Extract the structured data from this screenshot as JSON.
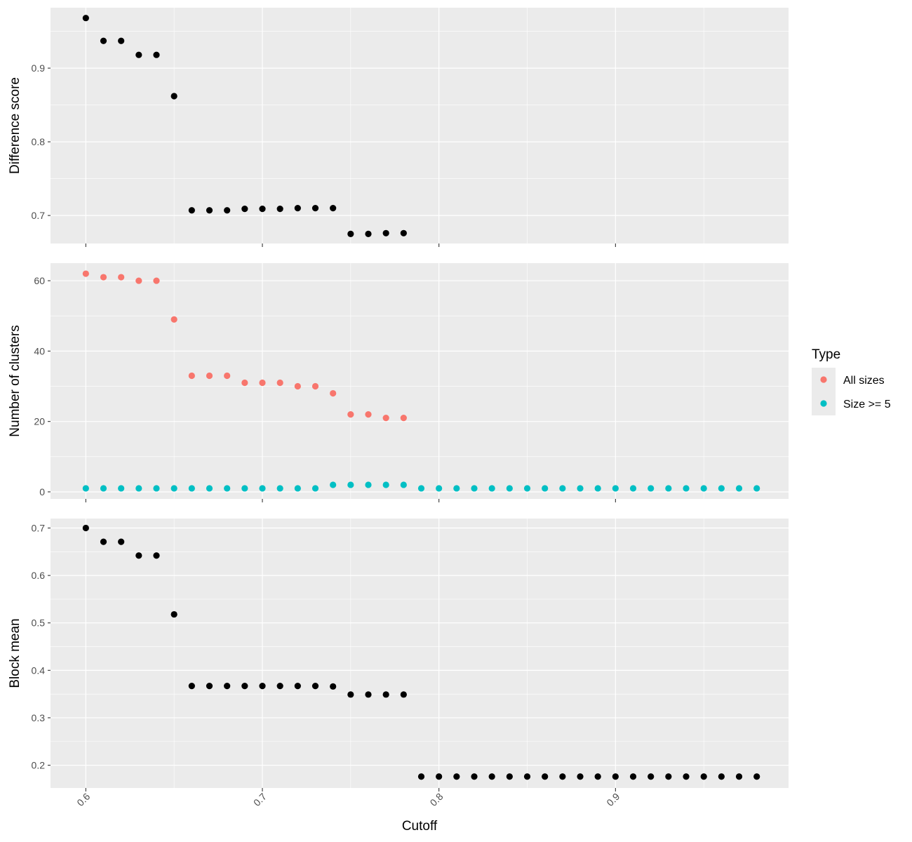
{
  "chart_data": {
    "type": "scatter",
    "shared_x": {
      "label": "Cutoff",
      "lim": [
        0.58,
        0.998
      ],
      "ticks": [
        0.6,
        0.7,
        0.8,
        0.9
      ],
      "tick_labels": [
        "0.6",
        "0.7",
        "0.8",
        "0.9"
      ]
    },
    "theme": {
      "panel_bg": "#ebebeb",
      "grid_color": "#ffffff",
      "point_color": "#000000"
    },
    "panels": [
      {
        "ylabel": "Difference score",
        "ylim": [
          0.662,
          0.982
        ],
        "yticks": [
          0.7,
          0.8,
          0.9
        ],
        "ytick_labels": [
          "0.7",
          "0.8",
          "0.9"
        ],
        "series": [
          {
            "x": [
              0.6,
              0.61,
              0.62,
              0.63,
              0.64,
              0.65,
              0.66,
              0.67,
              0.68,
              0.69,
              0.7,
              0.71,
              0.72,
              0.73,
              0.74,
              0.75,
              0.76,
              0.77,
              0.78
            ],
            "y": [
              0.968,
              0.937,
              0.937,
              0.918,
              0.918,
              0.862,
              0.707,
              0.707,
              0.707,
              0.709,
              0.709,
              0.709,
              0.71,
              0.71,
              0.71,
              0.675,
              0.675,
              0.676,
              0.676
            ]
          }
        ]
      },
      {
        "ylabel": "Number of clusters",
        "ylim": [
          -2,
          65
        ],
        "yticks": [
          0,
          20,
          40,
          60
        ],
        "ytick_labels": [
          "0",
          "20",
          "40",
          "60"
        ],
        "series": [
          {
            "name": "All sizes",
            "color": "#f8766d",
            "x": [
              0.6,
              0.61,
              0.62,
              0.63,
              0.64,
              0.65,
              0.66,
              0.67,
              0.68,
              0.69,
              0.7,
              0.71,
              0.72,
              0.73,
              0.74,
              0.75,
              0.76,
              0.77,
              0.78
            ],
            "y": [
              62,
              61,
              61,
              60,
              60,
              49,
              33,
              33,
              33,
              31,
              31,
              31,
              30,
              30,
              28,
              22,
              22,
              21,
              21
            ]
          },
          {
            "name": "Size >= 5",
            "color": "#00bfc4",
            "x": [
              0.6,
              0.61,
              0.62,
              0.63,
              0.64,
              0.65,
              0.66,
              0.67,
              0.68,
              0.69,
              0.7,
              0.71,
              0.72,
              0.73,
              0.74,
              0.75,
              0.76,
              0.77,
              0.78,
              0.79,
              0.8,
              0.81,
              0.82,
              0.83,
              0.84,
              0.85,
              0.86,
              0.87,
              0.88,
              0.89,
              0.9,
              0.91,
              0.92,
              0.93,
              0.94,
              0.95,
              0.96,
              0.97,
              0.98
            ],
            "y": [
              1,
              1,
              1,
              1,
              1,
              1,
              1,
              1,
              1,
              1,
              1,
              1,
              1,
              1,
              2,
              2,
              2,
              2,
              2,
              1,
              1,
              1,
              1,
              1,
              1,
              1,
              1,
              1,
              1,
              1,
              1,
              1,
              1,
              1,
              1,
              1,
              1,
              1,
              1
            ]
          }
        ]
      },
      {
        "ylabel": "Block mean",
        "ylim": [
          0.152,
          0.72
        ],
        "yticks": [
          0.2,
          0.3,
          0.4,
          0.5,
          0.6,
          0.7
        ],
        "ytick_labels": [
          "0.2",
          "0.3",
          "0.4",
          "0.5",
          "0.6",
          "0.7"
        ],
        "series": [
          {
            "x": [
              0.6,
              0.61,
              0.62,
              0.63,
              0.64,
              0.65,
              0.66,
              0.67,
              0.68,
              0.69,
              0.7,
              0.71,
              0.72,
              0.73,
              0.74,
              0.75,
              0.76,
              0.77,
              0.78,
              0.79,
              0.8,
              0.81,
              0.82,
              0.83,
              0.84,
              0.85,
              0.86,
              0.87,
              0.88,
              0.89,
              0.9,
              0.91,
              0.92,
              0.93,
              0.94,
              0.95,
              0.96,
              0.97,
              0.98
            ],
            "y": [
              0.7,
              0.671,
              0.671,
              0.642,
              0.642,
              0.518,
              0.367,
              0.367,
              0.367,
              0.367,
              0.367,
              0.367,
              0.367,
              0.367,
              0.366,
              0.349,
              0.349,
              0.349,
              0.349,
              0.176,
              0.176,
              0.176,
              0.176,
              0.176,
              0.176,
              0.176,
              0.176,
              0.176,
              0.176,
              0.176,
              0.176,
              0.176,
              0.176,
              0.176,
              0.176,
              0.176,
              0.176,
              0.176,
              0.176
            ]
          }
        ]
      }
    ],
    "legend": {
      "title": "Type",
      "placement": "right",
      "entries": [
        {
          "label": "All sizes",
          "color": "#f8766d"
        },
        {
          "label": "Size >= 5",
          "color": "#00bfc4"
        }
      ]
    }
  }
}
